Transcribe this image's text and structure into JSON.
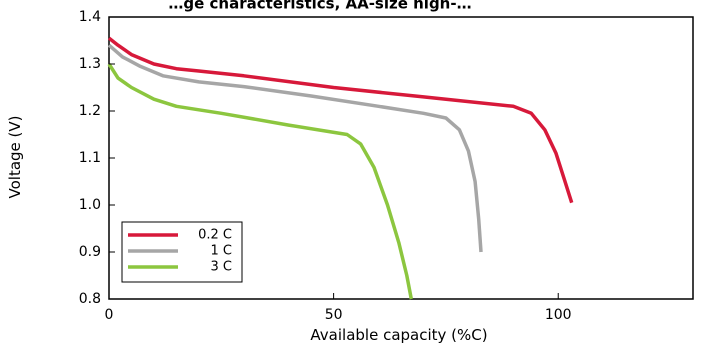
{
  "chart_data": {
    "type": "line",
    "title": "…ge characteristics, AA-size high-…",
    "xlabel": "Available capacity (%C)",
    "ylabel": "Voltage (V)",
    "xlim": [
      0,
      130
    ],
    "ylim": [
      0.8,
      1.4
    ],
    "xticks": [
      0,
      50,
      100
    ],
    "yticks": [
      0.8,
      0.9,
      1.0,
      1.1,
      1.2,
      1.3,
      1.4
    ],
    "ytick_labels": [
      "0.8",
      "0.9",
      "1.0",
      "1.1",
      "1.2",
      "1.3",
      "1.4"
    ],
    "grid": false,
    "legend_position": "bottom-left",
    "series": [
      {
        "name": "0.2 C",
        "color": "#d7193a",
        "points": [
          [
            0,
            1.355
          ],
          [
            2,
            1.34
          ],
          [
            5,
            1.32
          ],
          [
            10,
            1.3
          ],
          [
            15,
            1.29
          ],
          [
            20,
            1.285
          ],
          [
            30,
            1.275
          ],
          [
            50,
            1.25
          ],
          [
            70,
            1.23
          ],
          [
            90,
            1.21
          ],
          [
            94,
            1.195
          ],
          [
            97,
            1.16
          ],
          [
            99.5,
            1.11
          ],
          [
            101.5,
            1.05
          ],
          [
            103,
            1.005
          ]
        ]
      },
      {
        "name": "1 C",
        "color": "#a6a6a6",
        "points": [
          [
            0,
            1.34
          ],
          [
            3,
            1.315
          ],
          [
            7,
            1.295
          ],
          [
            12,
            1.275
          ],
          [
            20,
            1.262
          ],
          [
            30,
            1.252
          ],
          [
            45,
            1.232
          ],
          [
            60,
            1.21
          ],
          [
            70,
            1.195
          ],
          [
            75,
            1.185
          ],
          [
            78,
            1.16
          ],
          [
            80,
            1.115
          ],
          [
            81.5,
            1.05
          ],
          [
            82.3,
            0.97
          ],
          [
            82.8,
            0.9
          ]
        ]
      },
      {
        "name": "3 C",
        "color": "#8cc63f",
        "points": [
          [
            0,
            1.3
          ],
          [
            2,
            1.27
          ],
          [
            5,
            1.25
          ],
          [
            10,
            1.225
          ],
          [
            15,
            1.21
          ],
          [
            25,
            1.195
          ],
          [
            40,
            1.17
          ],
          [
            53,
            1.15
          ],
          [
            56,
            1.13
          ],
          [
            59,
            1.08
          ],
          [
            62,
            1.0
          ],
          [
            64.5,
            0.92
          ],
          [
            66.3,
            0.85
          ],
          [
            67.3,
            0.8
          ]
        ]
      }
    ]
  }
}
